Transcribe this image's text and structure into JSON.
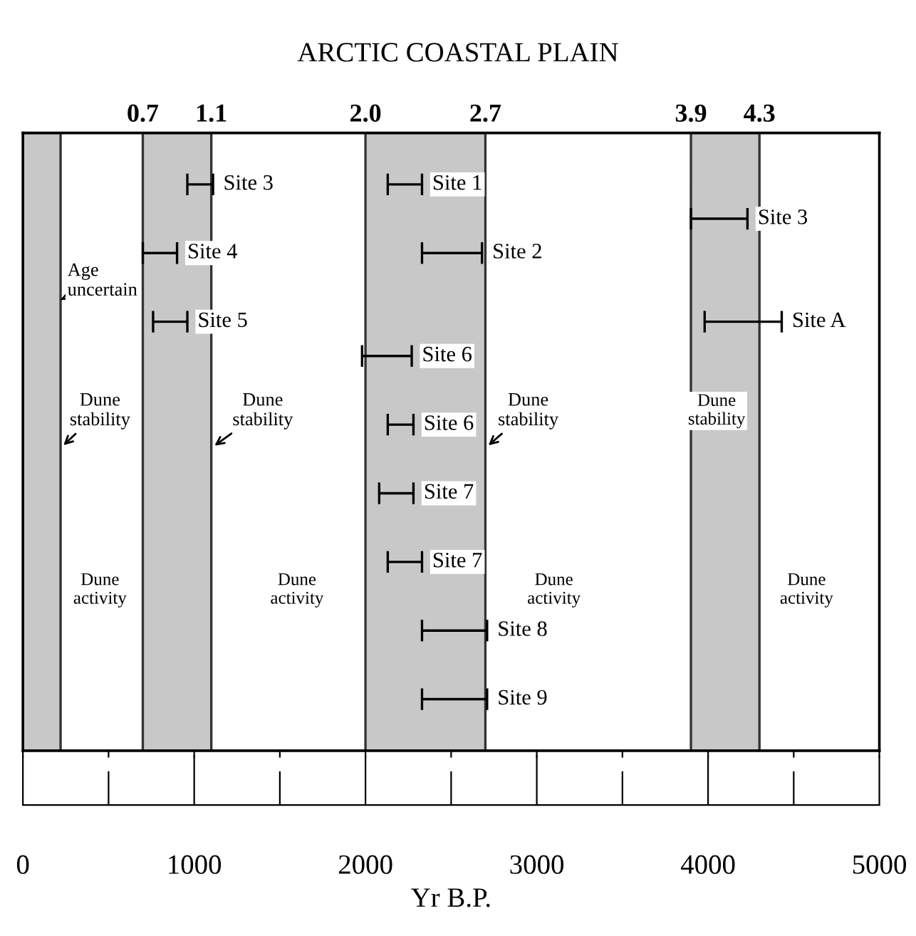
{
  "chart_data": {
    "type": "bar",
    "orientation": "horizontal",
    "title": "ARCTIC COASTAL PLAIN",
    "xlabel": "Yr B.P.",
    "categories": [
      null,
      null,
      null,
      null,
      null,
      null,
      null,
      null,
      null,
      null,
      null,
      null,
      null,
      null,
      null,
      null,
      null,
      null
    ],
    "xlim": [
      0,
      5000
    ],
    "xticks": [
      0,
      {
        "value": 500,
        "label": null
      },
      1000,
      {
        "value": 1500,
        "label": null
      },
      2000,
      {
        "value": 2500,
        "label": null
      },
      3000,
      {
        "value": 3500,
        "label": null
      },
      4000,
      {
        "value": 4500,
        "label": null
      },
      5000
    ],
    "x2lim": [
      0,
      5
    ],
    "x2ticks": [
      0.7,
      1.1,
      {
        "value": 2,
        "label": "2.0"
      },
      2.7,
      3.9,
      4.3
    ],
    "tick_labels": "x",
    "grid": false,
    "legend": false,
    "bands": [
      {
        "axis": "x",
        "from": 0,
        "to": 220,
        "color": "#c8c8c8"
      },
      {
        "axis": "x",
        "from": 700,
        "to": 1100,
        "color": "#c8c8c8"
      },
      {
        "axis": "x",
        "from": 2000,
        "to": 2700,
        "color": "#c8c8c8"
      },
      {
        "axis": "x",
        "from": 3900,
        "to": 4300,
        "color": "#c8c8c8"
      }
    ],
    "series": [
      {
        "color": "#000000",
        "values": [
          null,
          150,
          null,
          200,
          null,
          200,
          null,
          null,
          null,
          null,
          null,
          null,
          null,
          null,
          null,
          null,
          null,
          null
        ],
        "base": [
          null,
          960,
          null,
          700,
          null,
          760,
          null,
          null,
          null,
          null,
          null,
          null,
          null,
          null,
          null,
          null,
          null,
          null
        ],
        "value_labels": [
          null,
          "Site 3",
          null,
          "Site 4",
          null,
          "Site 5",
          null,
          null,
          null,
          null,
          null,
          null,
          null,
          null,
          null,
          null,
          null,
          null
        ]
      },
      {
        "color": "#000000",
        "values": [
          null,
          200,
          null,
          350,
          null,
          null,
          290,
          null,
          150,
          null,
          200,
          null,
          200,
          null,
          380,
          null,
          380,
          null
        ],
        "base": [
          null,
          2130,
          null,
          2330,
          null,
          null,
          1980,
          null,
          2130,
          null,
          2080,
          null,
          2130,
          null,
          2330,
          null,
          2330,
          null
        ],
        "value_labels": [
          null,
          "Site 1",
          null,
          "Site 2",
          null,
          null,
          "Site 6",
          null,
          "Site 6",
          null,
          "Site 7",
          null,
          "Site 7",
          null,
          "Site 8",
          null,
          "Site 9",
          null
        ]
      },
      {
        "color": "#000000",
        "values": [
          null,
          null,
          330,
          null,
          null,
          450,
          null,
          null,
          null,
          null,
          null,
          null,
          null,
          null,
          null,
          null,
          null,
          null
        ],
        "base": [
          null,
          null,
          3900,
          null,
          null,
          3980,
          null,
          null,
          null,
          null,
          null,
          null,
          null,
          null,
          null,
          null,
          null,
          null
        ],
        "value_labels": [
          null,
          null,
          "Site 3",
          null,
          null,
          "Site A",
          null,
          null,
          null,
          null,
          null,
          null,
          null,
          null,
          null,
          null,
          null,
          null
        ]
      }
    ],
    "annotations": [
      {
        "text": "Age\nuncertain",
        "x": 220
      },
      {
        "text": "Dune\nstability",
        "x": 220
      },
      {
        "text": "Dune\nstability",
        "x": 1100
      },
      {
        "text": "Dune\nstability",
        "x": 2700
      },
      "Dune\nstability",
      "Dune\nactivity",
      "Dune\nactivity",
      "Dune\nactivity",
      "Dune\nactivity"
    ]
  }
}
